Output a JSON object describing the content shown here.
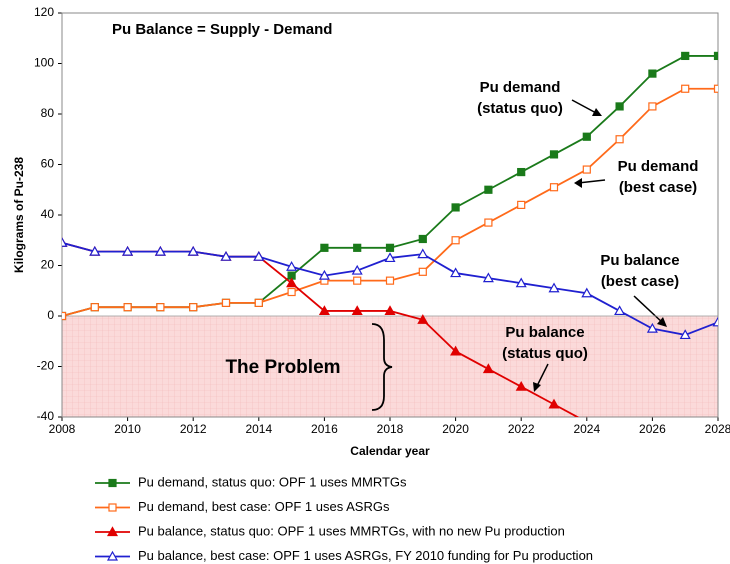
{
  "chart_data": {
    "type": "line",
    "title": "Pu Balance = Supply - Demand",
    "xlabel": "Calendar year",
    "ylabel": "Kilograms of Pu-238",
    "x": [
      2008,
      2009,
      2010,
      2011,
      2012,
      2013,
      2014,
      2015,
      2016,
      2017,
      2018,
      2019,
      2020,
      2021,
      2022,
      2023,
      2024,
      2025,
      2026,
      2027,
      2028
    ],
    "xlim": [
      2008,
      2028
    ],
    "xticks": [
      2008,
      2010,
      2012,
      2014,
      2016,
      2018,
      2020,
      2022,
      2024,
      2026,
      2028
    ],
    "ylim": [
      -40,
      120
    ],
    "yticks": [
      -40,
      -20,
      0,
      20,
      40,
      60,
      80,
      100,
      120
    ],
    "series": [
      {
        "name": "Pu demand, status quo: OPF 1 uses MMRTGs",
        "color": "#1a7a1a",
        "marker": "square",
        "filled": true,
        "values": [
          0,
          3.5,
          3.5,
          3.5,
          3.5,
          5.2,
          5.2,
          16,
          27,
          27,
          27,
          30.5,
          43,
          50,
          57,
          64,
          71,
          83,
          96,
          103,
          103
        ]
      },
      {
        "name": "Pu demand, best case: OPF 1 uses ASRGs",
        "color": "#ff6a1a",
        "marker": "square",
        "filled": false,
        "values": [
          0,
          3.5,
          3.5,
          3.5,
          3.5,
          5.2,
          5.2,
          9.5,
          14,
          14,
          14,
          17.5,
          30,
          37,
          44,
          51,
          58,
          70,
          83,
          90,
          90
        ]
      },
      {
        "name": "Pu balance, status quo: OPF 1 uses MMRTGs, with no new Pu production",
        "color": "#e00000",
        "marker": "triangle",
        "filled": true,
        "values": [
          29,
          25.5,
          25.5,
          25.5,
          25.5,
          23.5,
          23.5,
          13,
          2,
          2,
          2,
          -1.5,
          -14,
          -21,
          -28,
          -35,
          -42,
          null,
          null,
          null,
          null
        ]
      },
      {
        "name": "Pu balance, best case: OPF 1 uses ASRGs, FY 2010 funding for Pu production",
        "color": "#2020d0",
        "marker": "triangle",
        "filled": false,
        "values": [
          29,
          25.5,
          25.5,
          25.5,
          25.5,
          23.5,
          23.5,
          19.5,
          16,
          18,
          23,
          24.5,
          17,
          15,
          13,
          11,
          9,
          2,
          -5,
          -7.5,
          -2.5
        ]
      }
    ],
    "annotations": [
      {
        "lines": [
          "Pu demand",
          "(status quo)"
        ]
      },
      {
        "lines": [
          "Pu demand",
          "(best case)"
        ]
      },
      {
        "lines": [
          "Pu balance",
          "(best case)"
        ]
      },
      {
        "lines": [
          "Pu balance",
          "(status quo)"
        ]
      },
      {
        "lines": [
          "The Problem"
        ]
      }
    ]
  }
}
